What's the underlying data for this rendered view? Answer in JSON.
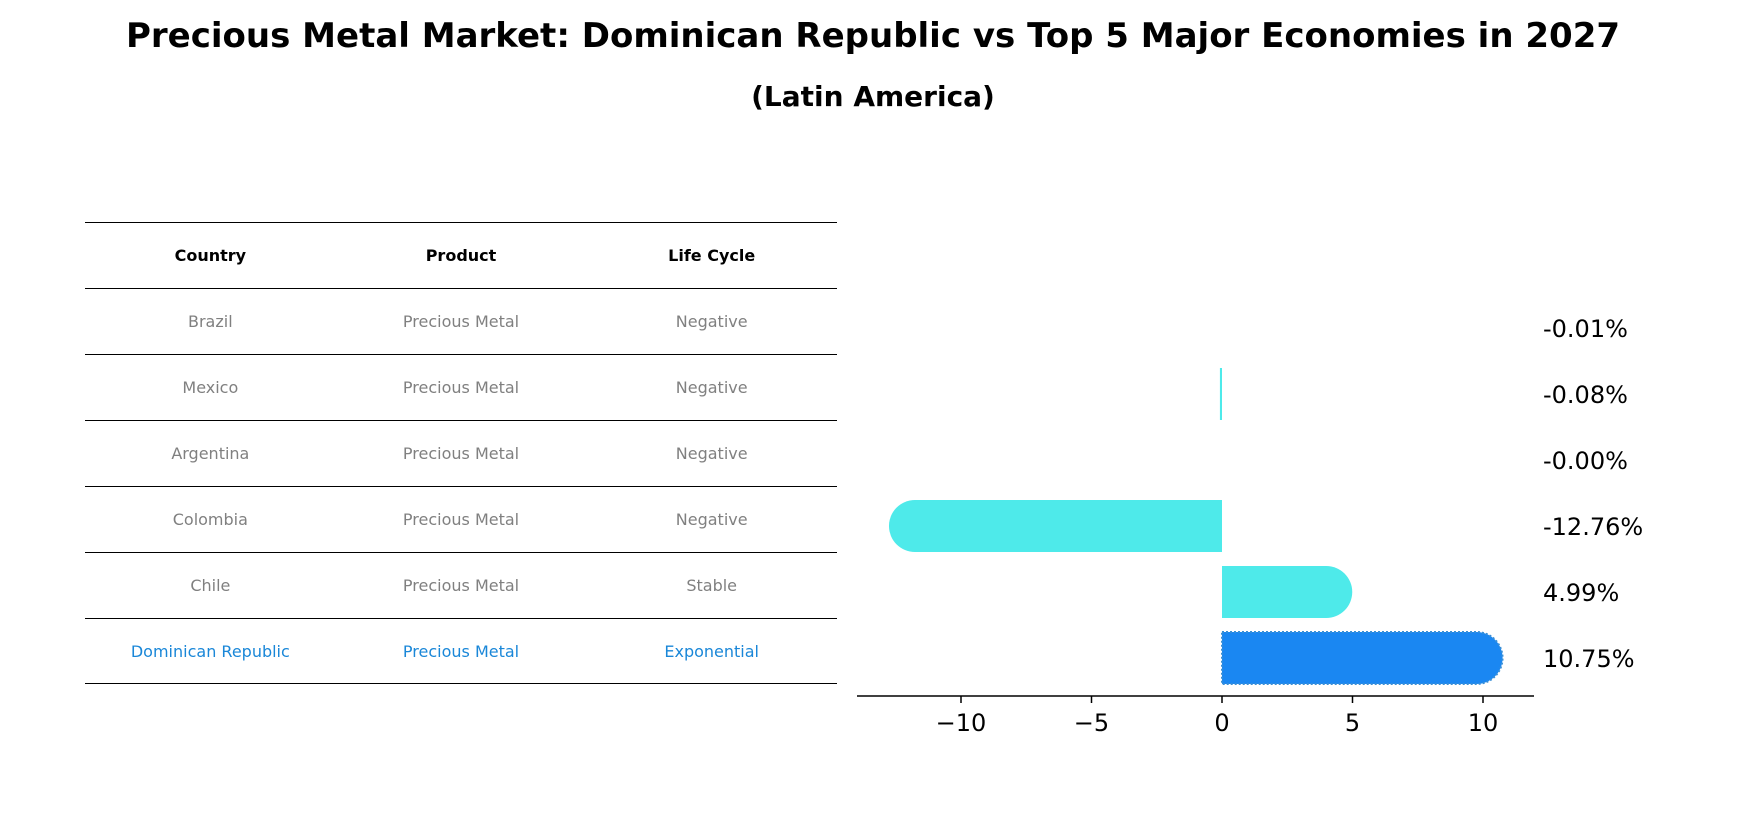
{
  "title": "Precious Metal Market: Dominican Republic vs Top 5 Major Economies in 2027",
  "subtitle": "(Latin America)",
  "table": {
    "headers": [
      "Country",
      "Product",
      "Life Cycle"
    ],
    "rows": [
      [
        "Brazil",
        "Precious Metal",
        "Negative"
      ],
      [
        "Mexico",
        "Precious Metal",
        "Negative"
      ],
      [
        "Argentina",
        "Precious Metal",
        "Negative"
      ],
      [
        "Colombia",
        "Precious Metal",
        "Negative"
      ],
      [
        "Chile",
        "Precious Metal",
        "Stable"
      ],
      [
        "Dominican Republic",
        "Precious Metal",
        "Exponential"
      ]
    ]
  },
  "colors": {
    "bar": "#4eeaea",
    "highlight": "#1a87f2",
    "highlight_text": "#1a87d8"
  },
  "chart_data": {
    "type": "bar",
    "orientation": "horizontal",
    "categories": [
      "Brazil",
      "Mexico",
      "Argentina",
      "Colombia",
      "Chile",
      "Dominican Republic"
    ],
    "values": [
      -0.01,
      -0.08,
      -0.0,
      -12.76,
      4.99,
      10.75
    ],
    "value_labels": [
      "-0.01%",
      "-0.08%",
      "-0.00%",
      "-12.76%",
      "4.99%",
      "10.75%"
    ],
    "highlight": "Dominican Republic",
    "xlim": [
      -14,
      12
    ],
    "xticks": [
      -10,
      -5,
      0,
      5,
      10
    ],
    "xtick_labels": [
      "−10",
      "−5",
      "0",
      "5",
      "10"
    ]
  }
}
